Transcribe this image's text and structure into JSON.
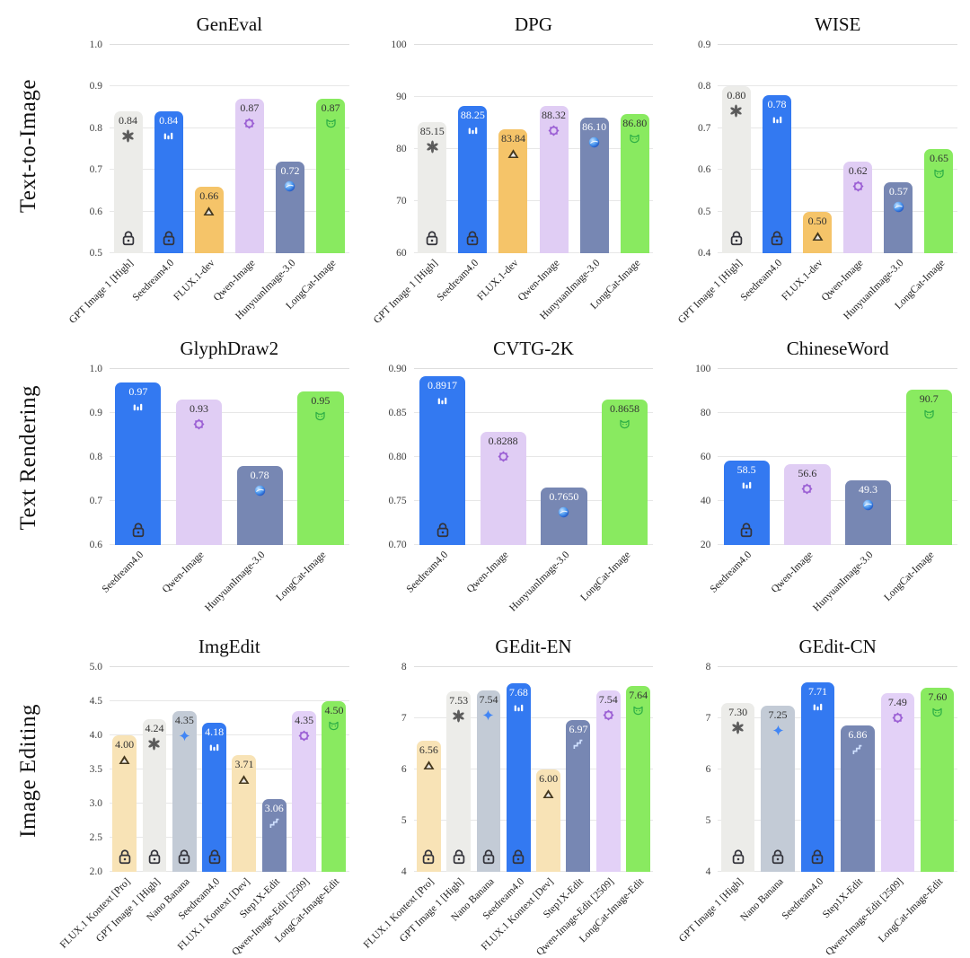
{
  "rows": [
    {
      "label": "Text-to-Image"
    },
    {
      "label": "Text Rendering"
    },
    {
      "label": "Image Editing"
    }
  ],
  "models": {
    "GPT Image 1 [High]": {
      "color": "#ECECE9",
      "value_color": "#333333",
      "icon": "openai-logo-icon",
      "icon_color": "#4f4f4f"
    },
    "Seedream4.0": {
      "color": "#3379F1",
      "value_color": "#ffffff",
      "icon": "seedream-icon",
      "icon_color": "#ffffff"
    },
    "FLUX.1-dev": {
      "color": "#F5C469",
      "value_color": "#333333",
      "icon": "flux-triangle-icon",
      "icon_color": "#45381d"
    },
    "Qwen-Image": {
      "color": "#E0CDF4",
      "value_color": "#333333",
      "icon": "qwen-star-icon",
      "icon_color": "#9b5fd4"
    },
    "HunyuanImage-3.0": {
      "color": "#7787B3",
      "value_color": "#ffffff",
      "icon": "hunyuan-sphere-icon",
      "icon_color": "#2f6fd8"
    },
    "LongCat-Image": {
      "color": "#89EA60",
      "value_color": "#333333",
      "icon": "longcat-icon",
      "icon_color": "#2eae46"
    },
    "FLUX.1 Kontext [Pro]": {
      "color": "#F8E3B6",
      "value_color": "#333333",
      "icon": "flux-triangle-icon",
      "icon_color": "#45381d"
    },
    "FLUX.1 Kontext [Dev]": {
      "color": "#F8E3B6",
      "value_color": "#333333",
      "icon": "flux-triangle-icon",
      "icon_color": "#45381d"
    },
    "Nano Banana": {
      "color": "#C3CBD6",
      "value_color": "#333333",
      "icon": "gemini-diamond-icon",
      "icon_color": "#4286f5"
    },
    "Step1X-Edit": {
      "color": "#7787B3",
      "value_color": "#ffffff",
      "icon": "step1x-icon",
      "icon_color": "#cfe0ff"
    },
    "Qwen-Image-Edit [2509]": {
      "color": "#E3D1F7",
      "value_color": "#333333",
      "icon": "qwen-star-icon",
      "icon_color": "#9b5fd4"
    },
    "LongCat-Image-Edit": {
      "color": "#89EA60",
      "value_color": "#333333",
      "icon": "longcat-icon",
      "icon_color": "#2eae46"
    }
  },
  "lock_color": "#33333a",
  "chart_data": [
    {
      "type": "bar",
      "row_label": "Text-to-Image",
      "title": "GenEval",
      "ylim": [
        0.5,
        1.0
      ],
      "yticks": [
        "1.0",
        "0.9",
        "0.8",
        "0.7",
        "0.6",
        "0.5"
      ],
      "categories": [
        "GPT Image 1 [High]",
        "Seedream4.0",
        "FLUX.1-dev",
        "Qwen-Image",
        "HunyuanImage-3.0",
        "LongCat-Image"
      ],
      "values": [
        0.84,
        0.84,
        0.66,
        0.87,
        0.72,
        0.87
      ],
      "labels": [
        "0.84",
        "0.84",
        "0.66",
        "0.87",
        "0.72",
        "0.87"
      ],
      "locks": [
        true,
        true,
        false,
        false,
        false,
        false
      ]
    },
    {
      "type": "bar",
      "row_label": "Text-to-Image",
      "title": "DPG",
      "ylim": [
        60,
        100
      ],
      "yticks": [
        "100",
        "90",
        "80",
        "70",
        "60"
      ],
      "categories": [
        "GPT Image 1 [High]",
        "Seedream4.0",
        "FLUX.1-dev",
        "Qwen-Image",
        "HunyuanImage-3.0",
        "LongCat-Image"
      ],
      "values": [
        85.15,
        88.25,
        83.84,
        88.32,
        86.1,
        86.8
      ],
      "labels": [
        "85.15",
        "88.25",
        "83.84",
        "88.32",
        "86.10",
        "86.80"
      ],
      "locks": [
        true,
        true,
        false,
        false,
        false,
        false
      ]
    },
    {
      "type": "bar",
      "row_label": "Text-to-Image",
      "title": "WISE",
      "ylim": [
        0.4,
        0.9
      ],
      "yticks": [
        "0.9",
        "0.8",
        "0.7",
        "0.6",
        "0.5",
        "0.4"
      ],
      "categories": [
        "GPT Image 1 [High]",
        "Seedream4.0",
        "FLUX.1-dev",
        "Qwen-Image",
        "HunyuanImage-3.0",
        "LongCat-Image"
      ],
      "values": [
        0.8,
        0.78,
        0.5,
        0.62,
        0.57,
        0.65
      ],
      "labels": [
        "0.80",
        "0.78",
        "0.50",
        "0.62",
        "0.57",
        "0.65"
      ],
      "locks": [
        true,
        true,
        false,
        false,
        false,
        false
      ]
    },
    {
      "type": "bar",
      "row_label": "Text Rendering",
      "title": "GlyphDraw2",
      "ylim": [
        0.6,
        1.0
      ],
      "yticks": [
        "1.0",
        "0.9",
        "0.8",
        "0.7",
        "0.6"
      ],
      "categories": [
        "Seedream4.0",
        "Qwen-Image",
        "HunyuanImage-3.0",
        "LongCat-Image"
      ],
      "values": [
        0.97,
        0.93,
        0.78,
        0.95
      ],
      "labels": [
        "0.97",
        "0.93",
        "0.78",
        "0.95"
      ],
      "locks": [
        true,
        false,
        false,
        false
      ]
    },
    {
      "type": "bar",
      "row_label": "Text Rendering",
      "title": "CVTG-2K",
      "ylim": [
        0.7,
        0.9
      ],
      "yticks": [
        "0.90",
        "0.85",
        "0.80",
        "0.75",
        "0.70"
      ],
      "categories": [
        "Seedream4.0",
        "Qwen-Image",
        "HunyuanImage-3.0",
        "LongCat-Image"
      ],
      "values": [
        0.8917,
        0.8288,
        0.765,
        0.8658
      ],
      "labels": [
        "0.8917",
        "0.8288",
        "0.7650",
        "0.8658"
      ],
      "locks": [
        true,
        false,
        false,
        false
      ]
    },
    {
      "type": "bar",
      "row_label": "Text Rendering",
      "title": "ChineseWord",
      "ylim": [
        20,
        100
      ],
      "yticks": [
        "100",
        "80",
        "60",
        "40",
        "20"
      ],
      "categories": [
        "Seedream4.0",
        "Qwen-Image",
        "HunyuanImage-3.0",
        "LongCat-Image"
      ],
      "values": [
        58.5,
        56.6,
        49.3,
        90.7
      ],
      "labels": [
        "58.5",
        "56.6",
        "49.3",
        "90.7"
      ],
      "locks": [
        true,
        false,
        false,
        false
      ]
    },
    {
      "type": "bar",
      "row_label": "Image Editing",
      "title": "ImgEdit",
      "ylim": [
        2.0,
        5.0
      ],
      "yticks": [
        "5.0",
        "4.5",
        "4.0",
        "3.5",
        "3.0",
        "2.5",
        "2.0"
      ],
      "categories": [
        "FLUX.1 Kontext [Pro]",
        "GPT Image 1 [High]",
        "Nano Banana",
        "Seedream4.0",
        "FLUX.1 Kontext [Dev]",
        "Step1X-Edit",
        "Qwen-Image-Edit [2509]",
        "LongCat-Image-Edit"
      ],
      "values": [
        4.0,
        4.24,
        4.35,
        4.18,
        3.71,
        3.06,
        4.35,
        4.5
      ],
      "labels": [
        "4.00",
        "4.24",
        "4.35",
        "4.18",
        "3.71",
        "3.06",
        "4.35",
        "4.50"
      ],
      "locks": [
        true,
        true,
        true,
        true,
        false,
        false,
        false,
        false
      ]
    },
    {
      "type": "bar",
      "row_label": "Image Editing",
      "title": "GEdit-EN",
      "ylim": [
        4,
        8
      ],
      "yticks": [
        "8",
        "7",
        "6",
        "5",
        "4"
      ],
      "categories": [
        "FLUX.1 Kontext [Pro]",
        "GPT Image 1 [High]",
        "Nano Banana",
        "Seedream4.0",
        "FLUX.1 Kontext [Dev]",
        "Step1X-Edit",
        "Qwen-Image-Edit [2509]",
        "LongCat-Image-Edit"
      ],
      "values": [
        6.56,
        7.53,
        7.54,
        7.68,
        6.0,
        6.97,
        7.54,
        7.64
      ],
      "labels": [
        "6.56",
        "7.53",
        "7.54",
        "7.68",
        "6.00",
        "6.97",
        "7.54",
        "7.64"
      ],
      "locks": [
        true,
        true,
        true,
        true,
        false,
        false,
        false,
        false
      ]
    },
    {
      "type": "bar",
      "row_label": "Image Editing",
      "title": "GEdit-CN",
      "ylim": [
        4,
        8
      ],
      "yticks": [
        "8",
        "7",
        "6",
        "5",
        "4"
      ],
      "categories": [
        "GPT Image 1 [High]",
        "Nano Banana",
        "Seedream4.0",
        "Step1X-Edit",
        "Qwen-Image-Edit [2509]",
        "LongCat-Image-Edit"
      ],
      "values": [
        7.3,
        7.25,
        7.71,
        6.86,
        7.49,
        7.6
      ],
      "labels": [
        "7.30",
        "7.25",
        "7.71",
        "6.86",
        "7.49",
        "7.60"
      ],
      "locks": [
        true,
        true,
        true,
        false,
        false,
        false
      ]
    }
  ]
}
